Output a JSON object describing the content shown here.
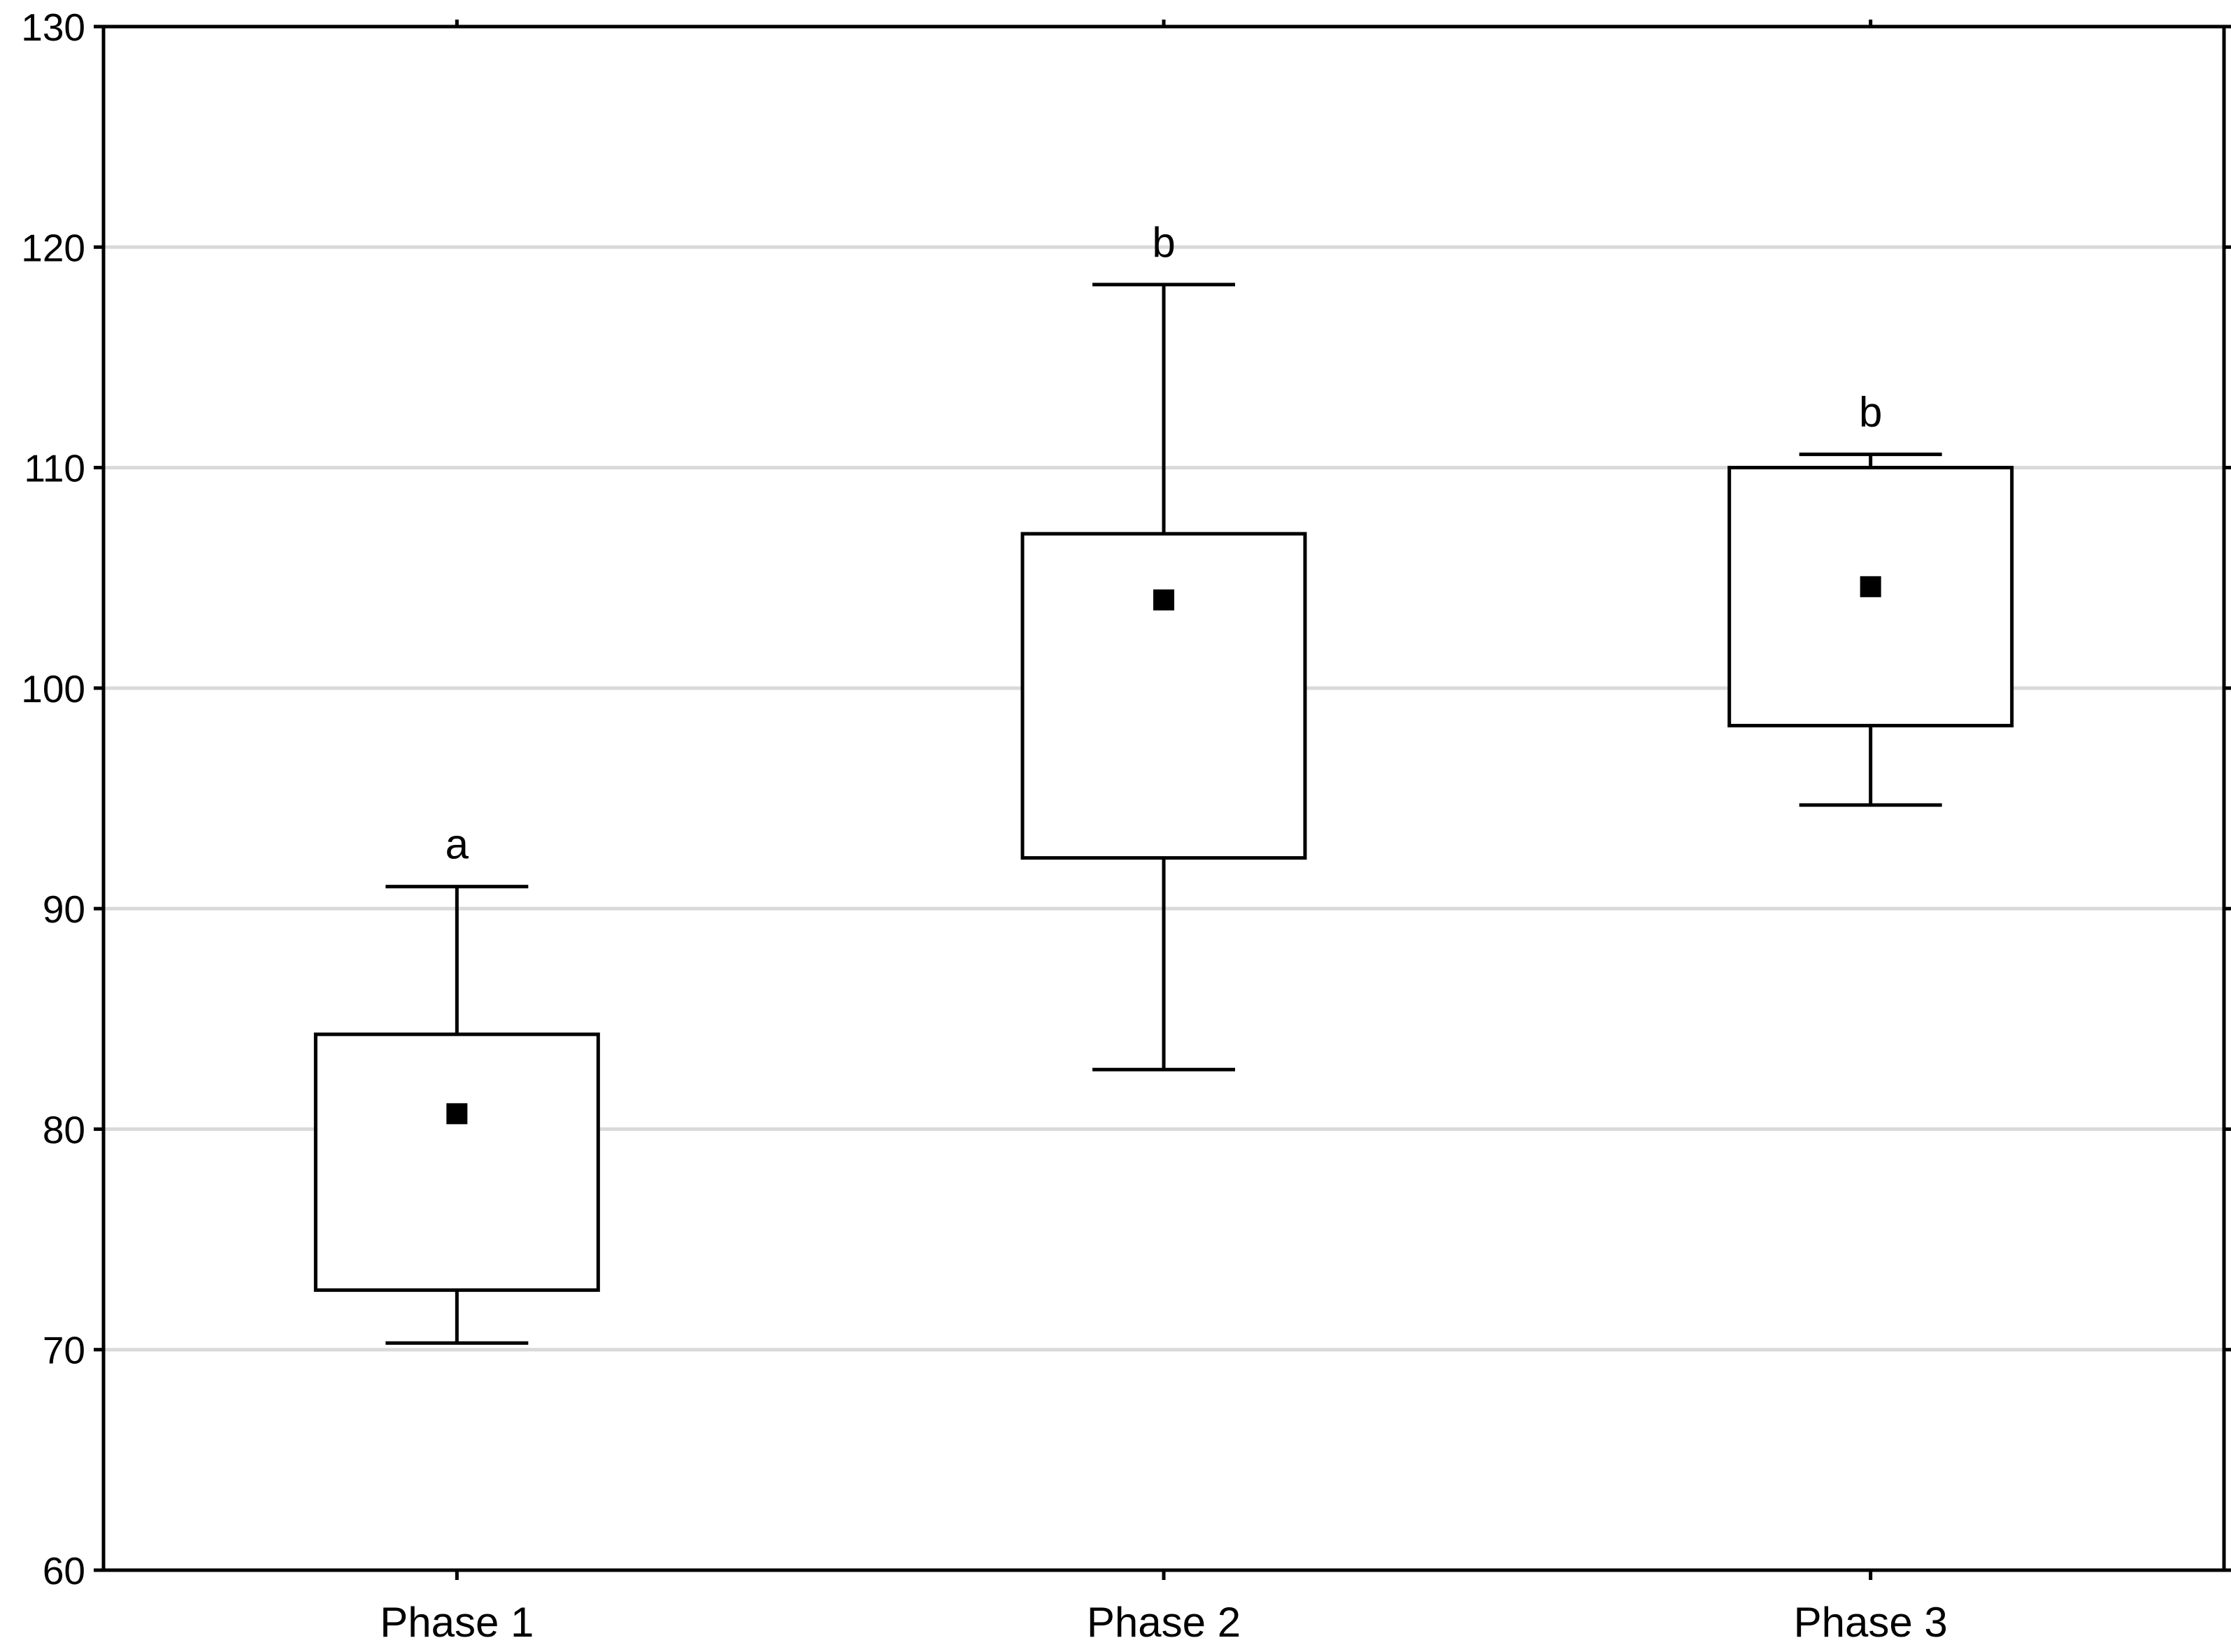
{
  "chart_data": {
    "type": "box",
    "title": "",
    "xlabel": "",
    "ylabel": "",
    "ylim": [
      60,
      130
    ],
    "yticks": [
      60,
      70,
      80,
      90,
      100,
      110,
      120,
      130
    ],
    "grid": "horizontal",
    "categories": [
      "Phase 1",
      "Phase 2",
      "Phase 3"
    ],
    "boxes": [
      {
        "category": "Phase 1",
        "whisker_low": 70.3,
        "box_low": 72.7,
        "mean": 80.7,
        "box_high": 84.3,
        "whisker_high": 91.0,
        "group_letter": "a"
      },
      {
        "category": "Phase 2",
        "whisker_low": 82.7,
        "box_low": 92.3,
        "mean": 104.0,
        "box_high": 107.0,
        "whisker_high": 118.3,
        "group_letter": "b"
      },
      {
        "category": "Phase 3",
        "whisker_low": 94.7,
        "box_low": 98.3,
        "mean": 104.6,
        "box_high": 110.0,
        "whisker_high": 110.6,
        "group_letter": "b"
      }
    ],
    "colors": {
      "axis": "#000000",
      "grid": "#d9d9d9",
      "box_fill": "#ffffff",
      "mean_marker": "#000000"
    }
  }
}
